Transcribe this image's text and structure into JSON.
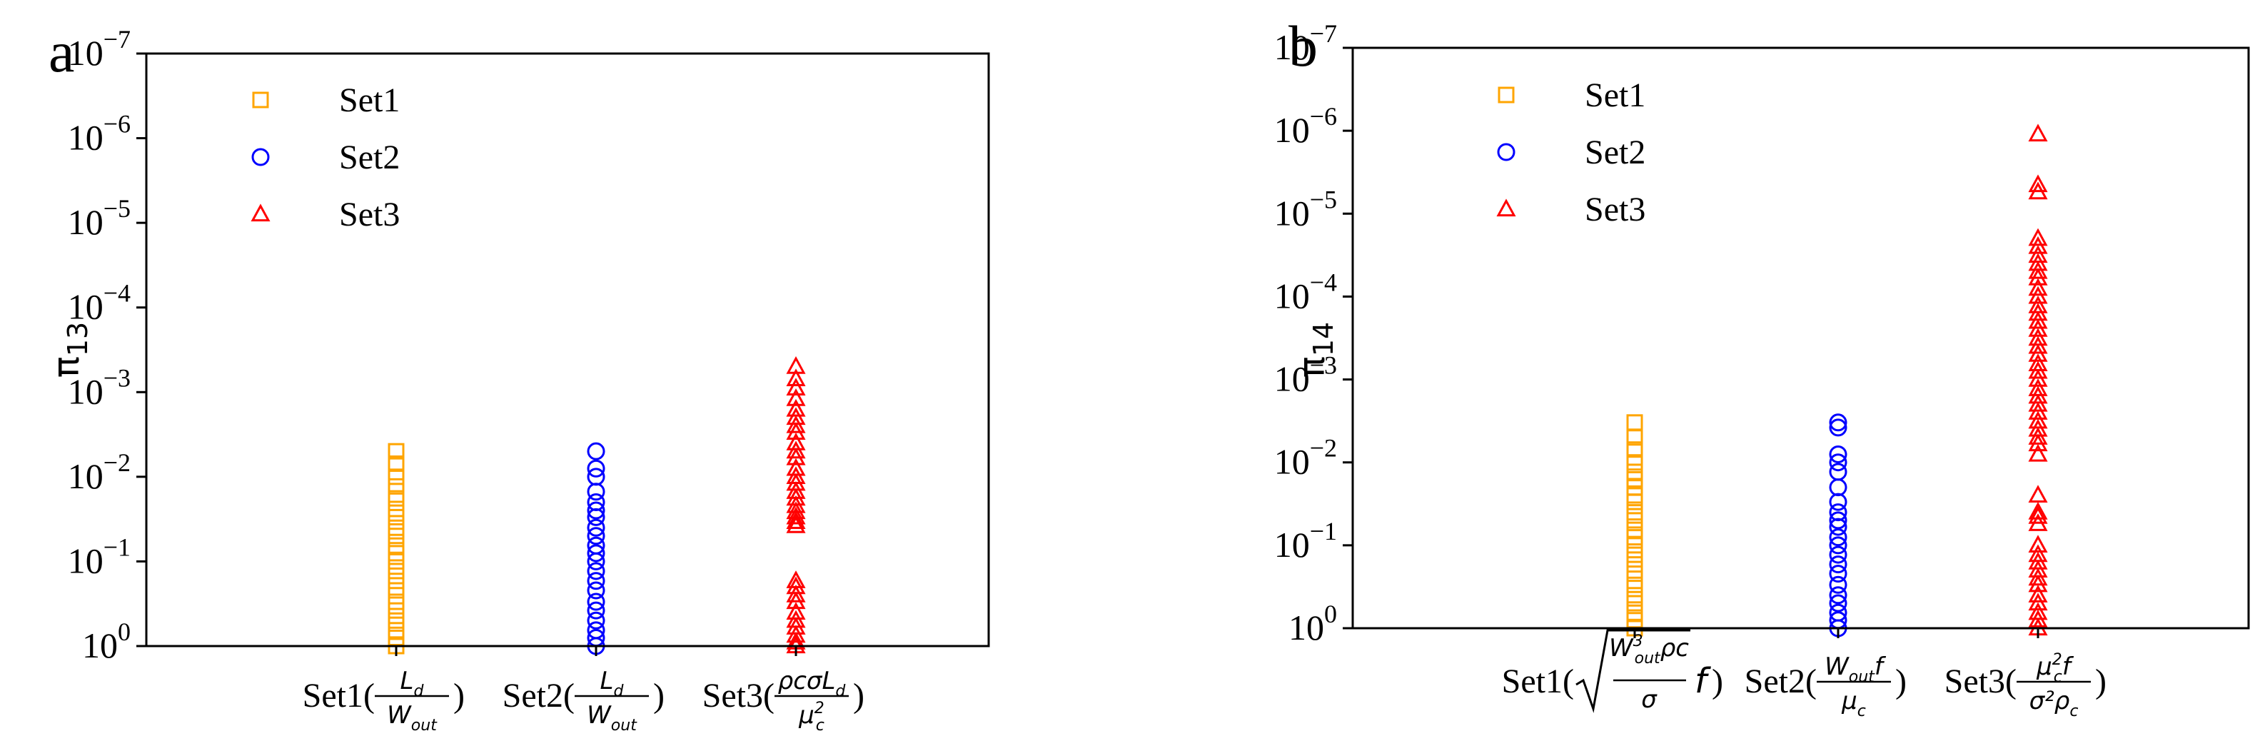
{
  "chart_data": [
    {
      "panel_label": "a",
      "type": "scatter",
      "y_scale": "log",
      "y_inverted": true,
      "ylim": [
        1,
        1e-07
      ],
      "ylabel": "π13",
      "ylabel_main": "π",
      "ylabel_sub": "13",
      "ytick_values": [
        1,
        0.1,
        0.01,
        0.001,
        0.0001,
        1e-05,
        1e-06,
        1e-07
      ],
      "ytick_labels": [
        {
          "base": "10",
          "exp": "0"
        },
        {
          "base": "10",
          "exp": "−1"
        },
        {
          "base": "10",
          "exp": "−2"
        },
        {
          "base": "10",
          "exp": "−3"
        },
        {
          "base": "10",
          "exp": "−4"
        },
        {
          "base": "10",
          "exp": "−5"
        },
        {
          "base": "10",
          "exp": "−6"
        },
        {
          "base": "10",
          "exp": "−7"
        }
      ],
      "categories": [
        "Set1",
        "Set2",
        "Set3"
      ],
      "xtick_labels": [
        {
          "prefix": "Set1(",
          "num": "L",
          "num_sub": "d",
          "den": "W",
          "den_sub": "out",
          "suffix": ")"
        },
        {
          "prefix": "Set2(",
          "num": "L",
          "num_sub": "d",
          "den": "W",
          "den_sub": "out",
          "suffix": ")"
        },
        {
          "prefix": "Set3(",
          "num": "ρcσL",
          "num_sub": "d",
          "den": "μ",
          "den_sub": "c",
          "den_sup": "2",
          "suffix": ")"
        }
      ],
      "legend_position": "top-left",
      "series": [
        {
          "name": "Set1",
          "marker": "square",
          "color": "#FFA500",
          "category": "Set1",
          "values": [
            0.005,
            0.007,
            0.01,
            0.013,
            0.018,
            0.024,
            0.03,
            0.04,
            0.05,
            0.065,
            0.08,
            0.1,
            0.13,
            0.17,
            0.22,
            0.3,
            0.38,
            0.5,
            0.65,
            0.8,
            1.0
          ]
        },
        {
          "name": "Set2",
          "marker": "circle",
          "color": "#0000FF",
          "category": "Set2",
          "values": [
            0.005,
            0.008,
            0.01,
            0.015,
            0.02,
            0.025,
            0.03,
            0.04,
            0.05,
            0.065,
            0.08,
            0.1,
            0.13,
            0.17,
            0.22,
            0.3,
            0.38,
            0.5,
            0.65,
            0.8,
            1.0
          ]
        },
        {
          "name": "Set3",
          "marker": "triangle",
          "color": "#FF0000",
          "category": "Set3",
          "values": [
            0.0005,
            0.0007,
            0.0009,
            0.0012,
            0.0016,
            0.002,
            0.0025,
            0.003,
            0.004,
            0.005,
            0.006,
            0.008,
            0.01,
            0.012,
            0.015,
            0.018,
            0.022,
            0.026,
            0.03,
            0.034,
            0.038,
            0.17,
            0.2,
            0.25,
            0.3,
            0.4,
            0.5,
            0.6,
            0.75,
            0.9,
            1.0
          ]
        }
      ]
    },
    {
      "panel_label": "b",
      "type": "scatter",
      "y_scale": "log",
      "y_inverted": true,
      "ylim": [
        1,
        1e-07
      ],
      "ylabel": "π14",
      "ylabel_main": "π",
      "ylabel_sub": "14",
      "ytick_values": [
        1,
        0.1,
        0.01,
        0.001,
        0.0001,
        1e-05,
        1e-06,
        1e-07
      ],
      "ytick_labels": [
        {
          "base": "10",
          "exp": "0"
        },
        {
          "base": "10",
          "exp": "−1"
        },
        {
          "base": "10",
          "exp": "−2"
        },
        {
          "base": "10",
          "exp": "−3"
        },
        {
          "base": "10",
          "exp": "−4"
        },
        {
          "base": "10",
          "exp": "−5"
        },
        {
          "base": "10",
          "exp": "−6"
        },
        {
          "base": "10",
          "exp": "−7"
        }
      ],
      "categories": [
        "Set1",
        "Set2",
        "Set3"
      ],
      "xtick_labels": [
        {
          "prefix": "Set1(",
          "sqrt_num": "W",
          "sqrt_num_sup": "3",
          "sqrt_num_sub": "out",
          "sqrt_num_tail": "ρc",
          "sqrt_den": "σ",
          "after": "f",
          "suffix": ")"
        },
        {
          "prefix": "Set2(",
          "num": "W",
          "num_sub": "out",
          "num_tail": "f",
          "den": "μ",
          "den_sub": "c",
          "suffix": ")"
        },
        {
          "prefix": "Set3(",
          "num": "μ",
          "num_sub": "c",
          "num_sup": "2",
          "num_tail": "f",
          "den": "σ²ρ",
          "den_sub": "c",
          "suffix": ")"
        }
      ],
      "legend_position": "top-left",
      "series": [
        {
          "name": "Set1",
          "marker": "square",
          "color": "#FFA500",
          "category": "Set1",
          "values": [
            0.0033,
            0.005,
            0.007,
            0.01,
            0.013,
            0.016,
            0.02,
            0.025,
            0.03,
            0.04,
            0.05,
            0.065,
            0.08,
            0.1,
            0.13,
            0.17,
            0.22,
            0.3,
            0.4,
            0.5,
            0.65,
            0.8,
            1.0
          ]
        },
        {
          "name": "Set2",
          "marker": "circle",
          "color": "#0000FF",
          "category": "Set2",
          "values": [
            0.0033,
            0.0038,
            0.008,
            0.01,
            0.013,
            0.02,
            0.03,
            0.04,
            0.05,
            0.06,
            0.08,
            0.1,
            0.13,
            0.17,
            0.22,
            0.3,
            0.4,
            0.5,
            0.65,
            0.8,
            1.0
          ]
        },
        {
          "name": "Set3",
          "marker": "triangle",
          "color": "#FF0000",
          "category": "Set3",
          "values": [
            1.1e-06,
            4.5e-06,
            5.5e-06,
            2e-05,
            2.5e-05,
            3.2e-05,
            4e-05,
            5e-05,
            6e-05,
            8e-05,
            0.0001,
            0.00013,
            0.00016,
            0.0002,
            0.00025,
            0.00032,
            0.0004,
            0.0005,
            0.00065,
            0.0008,
            0.001,
            0.0013,
            0.0016,
            0.002,
            0.0025,
            0.0032,
            0.004,
            0.005,
            0.006,
            0.008,
            0.025,
            0.04,
            0.045,
            0.055,
            0.1,
            0.13,
            0.16,
            0.2,
            0.25,
            0.3,
            0.4,
            0.5,
            0.65,
            0.8,
            1.0
          ]
        }
      ]
    }
  ]
}
